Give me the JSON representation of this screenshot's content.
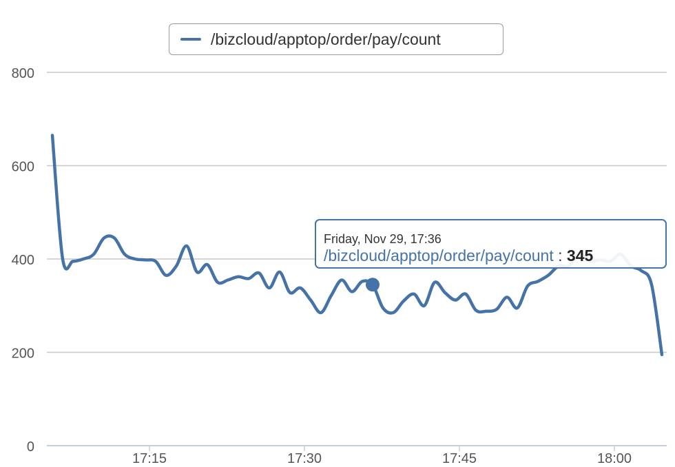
{
  "chart_data": {
    "type": "line",
    "series": [
      {
        "name": "/bizcloud/apptop/order/pay/count",
        "color": "#4572a7",
        "points": [
          [
            "17:05",
            665
          ],
          [
            "17:06",
            400
          ],
          [
            "17:07",
            395
          ],
          [
            "17:08",
            400
          ],
          [
            "17:09",
            410
          ],
          [
            "17:10",
            445
          ],
          [
            "17:11",
            445
          ],
          [
            "17:12",
            410
          ],
          [
            "17:13",
            400
          ],
          [
            "17:14",
            398
          ],
          [
            "17:15",
            395
          ],
          [
            "17:16",
            365
          ],
          [
            "17:17",
            385
          ],
          [
            "17:18",
            428
          ],
          [
            "17:19",
            372
          ],
          [
            "17:20",
            388
          ],
          [
            "17:21",
            350
          ],
          [
            "17:22",
            355
          ],
          [
            "17:23",
            362
          ],
          [
            "17:24",
            358
          ],
          [
            "17:25",
            370
          ],
          [
            "17:26",
            338
          ],
          [
            "17:27",
            372
          ],
          [
            "17:28",
            328
          ],
          [
            "17:29",
            338
          ],
          [
            "17:30",
            312
          ],
          [
            "17:31",
            285
          ],
          [
            "17:32",
            322
          ],
          [
            "17:33",
            355
          ],
          [
            "17:34",
            330
          ],
          [
            "17:35",
            352
          ],
          [
            "17:36",
            345
          ],
          [
            "17:37",
            295
          ],
          [
            "17:38",
            285
          ],
          [
            "17:39",
            310
          ],
          [
            "17:40",
            325
          ],
          [
            "17:41",
            300
          ],
          [
            "17:42",
            350
          ],
          [
            "17:43",
            328
          ],
          [
            "17:44",
            312
          ],
          [
            "17:45",
            325
          ],
          [
            "17:46",
            290
          ],
          [
            "17:47",
            288
          ],
          [
            "17:48",
            292
          ],
          [
            "17:49",
            318
          ],
          [
            "17:50",
            295
          ],
          [
            "17:51",
            342
          ],
          [
            "17:52",
            352
          ],
          [
            "17:53",
            365
          ],
          [
            "17:54",
            385
          ],
          [
            "17:55",
            385
          ],
          [
            "17:56",
            412
          ],
          [
            "17:57",
            395
          ],
          [
            "17:58",
            398
          ],
          [
            "17:59",
            395
          ],
          [
            "18:00",
            410
          ],
          [
            "18:01",
            385
          ],
          [
            "18:02",
            375
          ],
          [
            "18:03",
            345
          ],
          [
            "18:04",
            195
          ]
        ]
      }
    ],
    "ylim": [
      0,
      800
    ],
    "y_ticks": [
      "0",
      "200",
      "400",
      "600",
      "800"
    ],
    "x_ticks": [
      "17:15",
      "17:30",
      "17:45",
      "18:00"
    ],
    "grid": true,
    "legend": "top-center",
    "tooltip": {
      "date": "Friday, Nov 29, 17:36",
      "series": "/bizcloud/apptop/order/pay/count",
      "separator": ":",
      "value": "345",
      "point_index": 31
    }
  }
}
